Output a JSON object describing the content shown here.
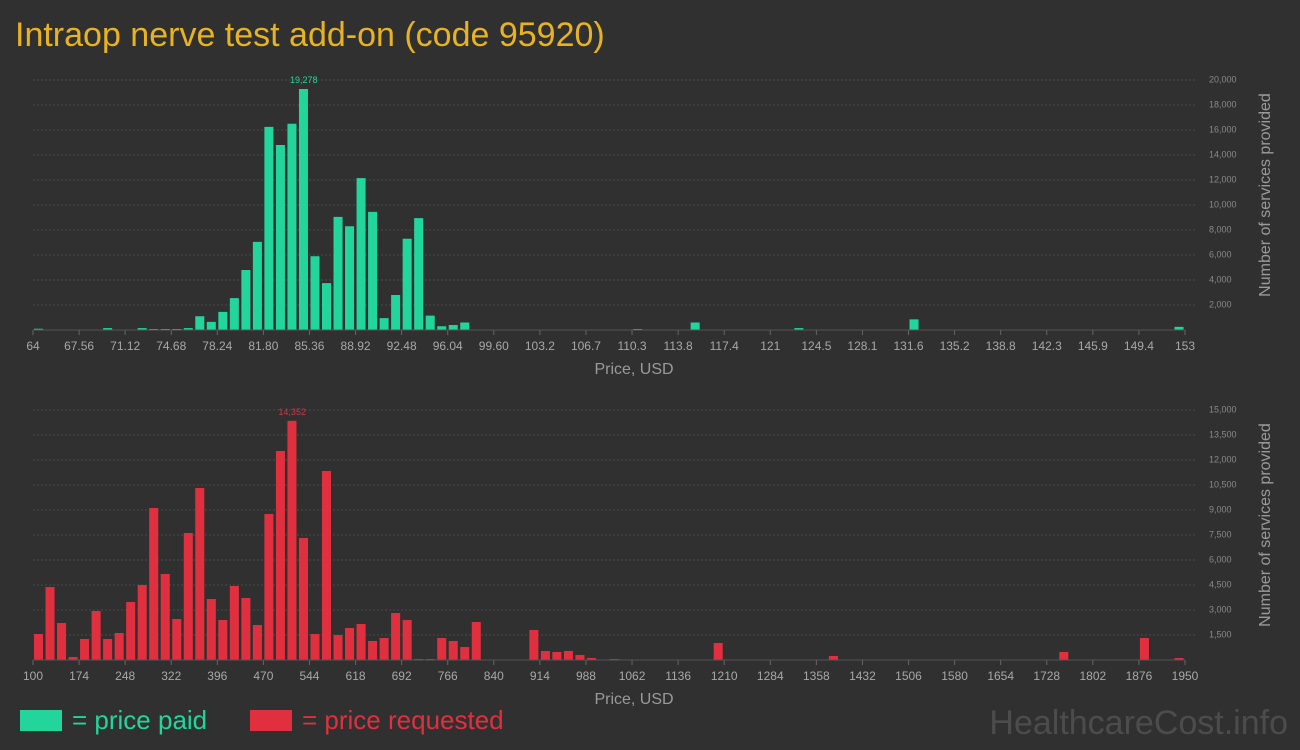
{
  "title": "Intraop nerve test add-on (code 95920)",
  "watermark": "HealthcareCost.info",
  "chart_data": [
    {
      "type": "histogram",
      "x_label": "Price, USD",
      "y_label": "Number of services provided",
      "peak_label": "19,278",
      "grid": true,
      "bins": [
        64,
        64.89,
        65.78,
        66.67,
        67.56,
        68.45,
        69.34,
        70.23,
        71.12,
        72.01,
        72.9,
        73.79,
        74.68,
        75.57,
        76.46,
        77.35,
        78.24,
        79.13,
        80.02,
        80.91,
        81.8,
        82.69,
        83.58,
        84.47,
        85.36,
        86.25,
        87.14,
        88.03,
        88.92,
        89.81,
        90.7,
        91.59,
        92.48,
        93.37,
        94.26,
        95.15,
        96.04,
        96.93,
        97.82,
        98.71,
        99.6,
        100.49,
        101.38,
        102.27,
        103.16,
        104.05,
        104.94,
        105.83,
        106.72,
        107.61,
        108.5,
        109.39,
        110.28,
        111.17,
        112.06,
        112.95,
        113.84,
        114.73,
        115.62,
        116.51,
        117.4,
        118.29,
        119.18,
        120.07,
        120.96,
        121.85,
        122.74,
        123.63,
        124.52,
        125.41,
        126.3,
        127.19,
        128.08,
        128.97,
        129.86,
        130.75,
        131.64,
        132.53,
        133.42,
        134.31,
        135.2,
        136.09,
        136.98,
        137.87,
        138.76,
        139.65,
        140.54,
        141.43,
        142.32,
        143.21,
        144.1,
        144.99,
        145.88,
        146.77,
        147.66,
        148.55,
        149.44,
        150.33,
        151.22,
        152.11,
        153
      ],
      "series": [
        {
          "name": "= price paid",
          "color": "#22d69b",
          "values": [
            100,
            0,
            0,
            0,
            0,
            0,
            150,
            0,
            0,
            150,
            80,
            80,
            80,
            150,
            1100,
            650,
            1450,
            2550,
            4800,
            7050,
            16250,
            14800,
            16500,
            19278,
            5900,
            3750,
            9050,
            8300,
            12150,
            9450,
            950,
            2800,
            7300,
            8950,
            1150,
            300,
            400,
            600,
            0,
            0,
            0,
            0,
            0,
            0,
            0,
            0,
            0,
            0,
            0,
            0,
            0,
            0,
            80,
            0,
            0,
            0,
            0,
            600,
            0,
            0,
            0,
            0,
            0,
            0,
            0,
            0,
            150,
            0,
            0,
            0,
            0,
            0,
            0,
            0,
            0,
            0,
            850,
            0,
            0,
            0,
            0,
            0,
            0,
            0,
            0,
            0,
            0,
            0,
            0,
            0,
            0,
            0,
            0,
            0,
            0,
            0,
            0,
            0,
            0,
            250
          ]
        }
      ],
      "xlim": [
        64,
        153
      ],
      "xticks": [
        64,
        {
          "value": 67.56,
          "label": "67.56"
        },
        71.12,
        74.68,
        78.24,
        {
          "value": 81.8,
          "label": "81.80"
        },
        85.36,
        88.92,
        92.48,
        96.04,
        {
          "value": 99.6,
          "label": "99.60"
        },
        {
          "value": 103.16,
          "label": "103.2"
        },
        {
          "value": 106.72,
          "label": "106.7"
        },
        {
          "value": 110.28,
          "label": "110.3"
        },
        {
          "value": 113.84,
          "label": "113.8"
        },
        117.4,
        {
          "value": 120.96,
          "label": "121"
        },
        {
          "value": 124.52,
          "label": "124.5"
        },
        {
          "value": 128.08,
          "label": "128.1"
        },
        {
          "value": 131.64,
          "label": "131.6"
        },
        135.2,
        {
          "value": 138.76,
          "label": "138.8"
        },
        {
          "value": 142.32,
          "label": "142.3"
        },
        {
          "value": 145.88,
          "label": "145.9"
        },
        {
          "value": 149.44,
          "label": "149.4"
        },
        153
      ],
      "ylim": [
        0,
        20000
      ],
      "yticks": [
        {
          "value": 2000,
          "label": "2,000"
        },
        {
          "value": 4000,
          "label": "4,000"
        },
        {
          "value": 6000,
          "label": "6,000"
        },
        {
          "value": 8000,
          "label": "8,000"
        },
        {
          "value": 10000,
          "label": "10,000"
        },
        {
          "value": 12000,
          "label": "12,000"
        },
        {
          "value": 14000,
          "label": "14,000"
        },
        {
          "value": 16000,
          "label": "16,000"
        },
        {
          "value": 18000,
          "label": "18,000"
        },
        {
          "value": 20000,
          "label": "20,000"
        }
      ]
    },
    {
      "type": "histogram",
      "x_label": "Price, USD",
      "y_label": "Number of services provided",
      "peak_label": "14,352",
      "grid": true,
      "bins": [
        100,
        118.5,
        137,
        155.5,
        174,
        192.5,
        211,
        229.5,
        248,
        266.5,
        285,
        303.5,
        322,
        340.5,
        359,
        377.5,
        396,
        414.5,
        433,
        451.5,
        470,
        488.5,
        507,
        525.5,
        544,
        562.5,
        581,
        599.5,
        618,
        636.5,
        655,
        673.5,
        692,
        710.5,
        729,
        747.5,
        766,
        784.5,
        803,
        821.5,
        840,
        858.5,
        877,
        895.5,
        914,
        932.5,
        951,
        969.5,
        988,
        1006.5,
        1025,
        1043.5,
        1062,
        1080.5,
        1099,
        1117.5,
        1136,
        1154.5,
        1173,
        1191.5,
        1210,
        1228.5,
        1247,
        1265.5,
        1284,
        1302.5,
        1321,
        1339.5,
        1358,
        1376.5,
        1395,
        1413.5,
        1432,
        1450.5,
        1469,
        1487.5,
        1506,
        1524.5,
        1543,
        1561.5,
        1580,
        1598.5,
        1617,
        1635.5,
        1654,
        1672.5,
        1691,
        1709.5,
        1728,
        1746.5,
        1765,
        1783.5,
        1802,
        1820.5,
        1839,
        1857.5,
        1876,
        1894.5,
        1913,
        1931.5,
        1950
      ],
      "series": [
        {
          "name": "= price requested",
          "color": "#e0303f",
          "values": [
            1560,
            4380,
            2220,
            180,
            1260,
            2940,
            1260,
            1620,
            3480,
            4500,
            9120,
            5160,
            2460,
            7620,
            10320,
            3660,
            2400,
            4440,
            3720,
            2100,
            8760,
            12540,
            14352,
            7320,
            1560,
            11340,
            1500,
            1920,
            2160,
            1140,
            1320,
            2820,
            2400,
            60,
            60,
            1320,
            1140,
            780,
            2280,
            0,
            0,
            0,
            0,
            1800,
            540,
            480,
            540,
            300,
            120,
            0,
            60,
            0,
            0,
            0,
            0,
            0,
            0,
            0,
            0,
            1020,
            0,
            0,
            0,
            0,
            0,
            0,
            0,
            0,
            0,
            240,
            0,
            0,
            0,
            0,
            0,
            0,
            0,
            0,
            0,
            0,
            0,
            0,
            0,
            0,
            0,
            0,
            0,
            0,
            0,
            480,
            0,
            0,
            0,
            0,
            0,
            0,
            1320,
            0,
            0,
            120
          ]
        }
      ],
      "xlim": [
        100,
        1950
      ],
      "xticks": [
        100,
        174,
        248,
        322,
        396,
        470,
        544,
        618,
        692,
        766,
        840,
        914,
        988,
        1062,
        1136,
        1210,
        1284,
        1358,
        1432,
        1506,
        1580,
        1654,
        1728,
        1802,
        1876,
        1950
      ],
      "ylim": [
        0,
        15000
      ],
      "yticks": [
        {
          "value": 1500,
          "label": "1,500"
        },
        {
          "value": 3000,
          "label": "3,000"
        },
        {
          "value": 4500,
          "label": "4,500"
        },
        {
          "value": 6000,
          "label": "6,000"
        },
        {
          "value": 7500,
          "label": "7,500"
        },
        {
          "value": 9000,
          "label": "9,000"
        },
        {
          "value": 10500,
          "label": "10,500"
        },
        {
          "value": 12000,
          "label": "12,000"
        },
        {
          "value": 13500,
          "label": "13,500"
        },
        {
          "value": 15000,
          "label": "15,000"
        }
      ]
    }
  ]
}
